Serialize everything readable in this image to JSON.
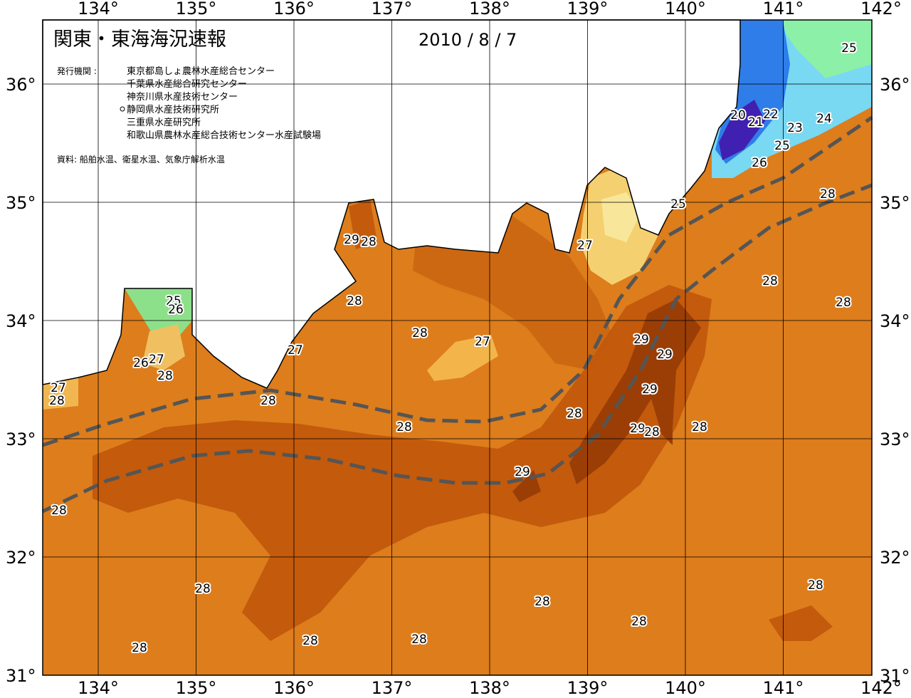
{
  "title": "関東・東海海況速報",
  "date": "2010 / 8 / 7",
  "issuers_label": "発行機関 :",
  "issuers": [
    "東京都島しょ農林水産総合センター",
    "千葉県水産総合研究センター",
    "神奈川県水産技術センター",
    "静岡県水産技術研究所",
    "三重県水産研究所",
    "和歌山県農林水産総合技術センター水産試験場"
  ],
  "sources": "資料: 船舶水温、衛星水温、気象庁解析水温",
  "longitude_labels": [
    "134°",
    "135°",
    "136°",
    "137°",
    "138°",
    "139°",
    "140°",
    "141°",
    "142°"
  ],
  "latitude_labels": [
    "36°",
    "35°",
    "34°",
    "33°",
    "32°",
    "31°"
  ],
  "contour_labels": [
    "25",
    "20",
    "21",
    "22",
    "24",
    "23",
    "25",
    "26",
    "28",
    "25",
    "27",
    "29",
    "28",
    "28",
    "28",
    "28",
    "25",
    "26",
    "28",
    "27",
    "29",
    "29",
    "27",
    "26",
    "27",
    "28",
    "29",
    "27",
    "28",
    "28",
    "28",
    "28",
    "28",
    "29",
    "28",
    "29",
    "28",
    "28",
    "28",
    "28",
    "28",
    "28",
    "28",
    "28"
  ]
}
